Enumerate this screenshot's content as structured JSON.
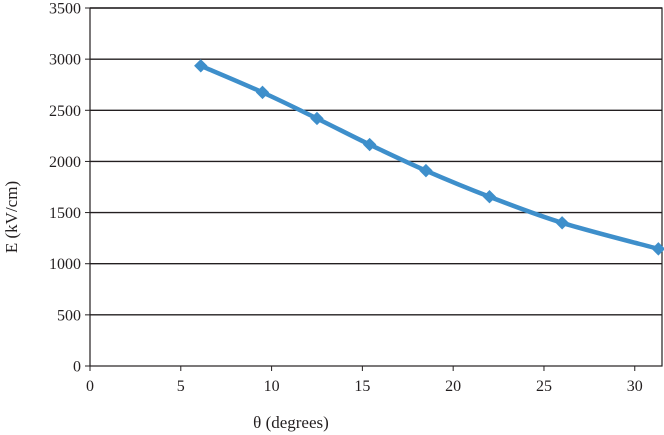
{
  "chart_data": {
    "type": "line",
    "title": "",
    "xlabel": "θ (degrees)",
    "ylabel": "E (kV/cm)",
    "xlim": [
      0,
      31.5
    ],
    "ylim": [
      0,
      3500
    ],
    "xticks": [
      0,
      5,
      10,
      15,
      20,
      25,
      30
    ],
    "yticks": [
      0,
      500,
      1000,
      1500,
      2000,
      2500,
      3000,
      3500
    ],
    "grid": {
      "horizontal": true,
      "vertical": false
    },
    "legend": "none",
    "series": [
      {
        "marker": "diamond",
        "color": "#3e8fcb",
        "x": [
          6.1,
          9.5,
          12.5,
          15.4,
          18.5,
          22.0,
          26.0,
          31.3
        ],
        "y": [
          2935,
          2675,
          2420,
          2165,
          1910,
          1655,
          1400,
          1145
        ]
      }
    ]
  }
}
